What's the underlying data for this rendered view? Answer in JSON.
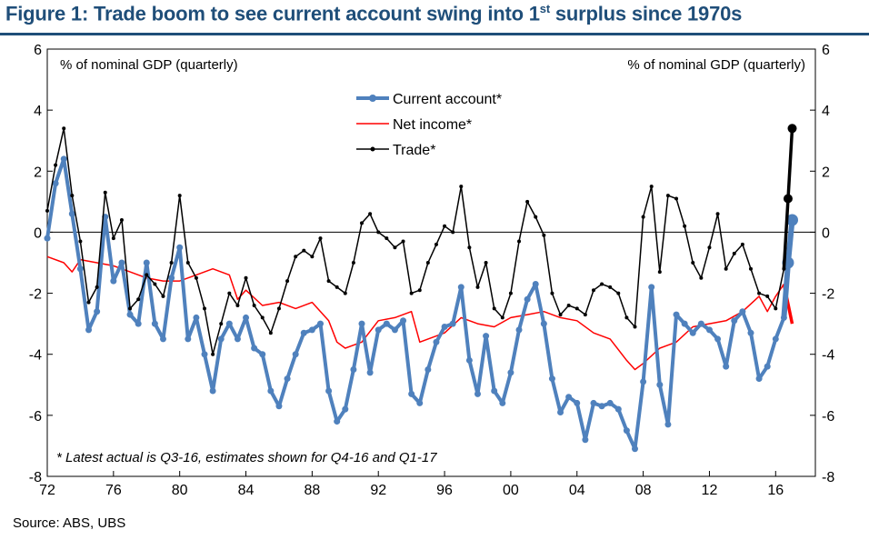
{
  "title": {
    "prefix": "Figure 1: Trade boom to see current account swing into 1",
    "superscript": "st",
    "suffix": " surplus since 1970s"
  },
  "source": "Source: ABS, UBS",
  "colors": {
    "title": "#1f4e79",
    "current_account": "#4f81bd",
    "net_income": "#ff0000",
    "trade": "#000000"
  },
  "chart_data": {
    "type": "line",
    "ylabel_left": "% of nominal GDP (quarterly)",
    "ylabel_right": "% of nominal GDP (quarterly)",
    "ylim": [
      -8,
      6
    ],
    "yticks": [
      "6",
      "4",
      "2",
      "0",
      "-2",
      "-4",
      "-6",
      "-8"
    ],
    "xlim": [
      1972,
      2018.4
    ],
    "xticks": [
      "72",
      "76",
      "80",
      "84",
      "88",
      "92",
      "96",
      "00",
      "04",
      "08",
      "12",
      "16"
    ],
    "legend_position": "top-center",
    "annotation": "* Latest actual is Q3-16, estimates shown for Q4-16 and Q1-17",
    "series": [
      {
        "name": "Current account*",
        "color": "#4f81bd",
        "x": [
          1972.0,
          1972.5,
          1973.0,
          1973.5,
          1974.0,
          1974.5,
          1975.0,
          1975.5,
          1976.0,
          1976.5,
          1977.0,
          1977.5,
          1978.0,
          1978.5,
          1979.0,
          1979.5,
          1980.0,
          1980.5,
          1981.0,
          1981.5,
          1982.0,
          1982.5,
          1983.0,
          1983.5,
          1984.0,
          1984.5,
          1985.0,
          1985.5,
          1986.0,
          1986.5,
          1987.0,
          1987.5,
          1988.0,
          1988.5,
          1989.0,
          1989.5,
          1990.0,
          1990.5,
          1991.0,
          1991.5,
          1992.0,
          1992.5,
          1993.0,
          1993.5,
          1994.0,
          1994.5,
          1995.0,
          1995.5,
          1996.0,
          1996.5,
          1997.0,
          1997.5,
          1998.0,
          1998.5,
          1999.0,
          1999.5,
          2000.0,
          2000.5,
          2001.0,
          2001.5,
          2002.0,
          2002.5,
          2003.0,
          2003.5,
          2004.0,
          2004.5,
          2005.0,
          2005.5,
          2006.0,
          2006.5,
          2007.0,
          2007.5,
          2008.0,
          2008.5,
          2009.0,
          2009.5,
          2010.0,
          2010.5,
          2011.0,
          2011.5,
          2012.0,
          2012.5,
          2013.0,
          2013.5,
          2014.0,
          2014.5,
          2015.0,
          2015.5,
          2016.0,
          2016.5,
          2016.75,
          2017.0
        ],
        "values": [
          -0.2,
          1.6,
          2.4,
          0.6,
          -1.2,
          -3.2,
          -2.6,
          0.5,
          -1.6,
          -1.0,
          -2.7,
          -3.0,
          -1.0,
          -3.0,
          -3.5,
          -1.5,
          -0.5,
          -3.5,
          -2.8,
          -4.0,
          -5.2,
          -3.5,
          -3.0,
          -3.5,
          -2.8,
          -3.8,
          -4.0,
          -5.2,
          -5.7,
          -4.8,
          -4.0,
          -3.3,
          -3.2,
          -3.0,
          -5.2,
          -6.2,
          -5.8,
          -4.5,
          -3.0,
          -4.6,
          -3.2,
          -3.0,
          -3.2,
          -2.9,
          -5.3,
          -5.6,
          -4.5,
          -3.6,
          -3.1,
          -3.0,
          -1.8,
          -4.2,
          -5.3,
          -3.4,
          -5.2,
          -5.6,
          -4.6,
          -3.2,
          -2.2,
          -1.7,
          -3.0,
          -4.8,
          -5.9,
          -5.4,
          -5.6,
          -6.8,
          -5.6,
          -5.7,
          -5.6,
          -5.8,
          -6.5,
          -7.1,
          -4.9,
          -1.8,
          -5.0,
          -6.3,
          -2.7,
          -3.0,
          -3.3,
          -3.0,
          -3.2,
          -3.5,
          -4.4,
          -2.9,
          -2.6,
          -3.3,
          -4.8,
          -4.4,
          -3.5,
          -2.8,
          -1.0,
          0.4
        ]
      },
      {
        "name": "Net income*",
        "color": "#ff0000",
        "x": [
          1972.0,
          1973.0,
          1973.5,
          1974.0,
          1975.0,
          1976.0,
          1977.0,
          1978.0,
          1979.0,
          1980.0,
          1981.0,
          1982.0,
          1983.0,
          1983.5,
          1984.0,
          1985.0,
          1986.0,
          1987.0,
          1988.0,
          1989.0,
          1989.5,
          1990.0,
          1991.0,
          1992.0,
          1993.0,
          1994.0,
          1994.5,
          1995.0,
          1996.0,
          1997.0,
          1998.0,
          1999.0,
          2000.0,
          2001.0,
          2002.0,
          2003.0,
          2004.0,
          2005.0,
          2006.0,
          2007.0,
          2007.5,
          2008.0,
          2009.0,
          2010.0,
          2011.0,
          2012.0,
          2013.0,
          2014.0,
          2015.0,
          2015.5,
          2016.0,
          2016.5,
          2017.0
        ],
        "values": [
          -0.8,
          -1.0,
          -1.3,
          -0.9,
          -1.0,
          -1.1,
          -1.3,
          -1.5,
          -1.6,
          -1.6,
          -1.4,
          -1.2,
          -1.4,
          -2.2,
          -1.9,
          -2.4,
          -2.3,
          -2.5,
          -2.3,
          -2.9,
          -3.6,
          -3.8,
          -3.6,
          -2.9,
          -2.8,
          -2.6,
          -3.6,
          -3.5,
          -3.3,
          -2.8,
          -3.0,
          -3.1,
          -2.8,
          -2.7,
          -2.6,
          -2.8,
          -2.9,
          -3.3,
          -3.5,
          -4.2,
          -4.5,
          -4.3,
          -3.8,
          -3.6,
          -3.1,
          -3.0,
          -2.9,
          -2.6,
          -2.1,
          -2.6,
          -2.1,
          -1.7,
          -3.0
        ]
      },
      {
        "name": "Trade*",
        "color": "#000000",
        "x": [
          1972.0,
          1972.5,
          1973.0,
          1973.5,
          1974.0,
          1974.5,
          1975.0,
          1975.5,
          1976.0,
          1976.5,
          1977.0,
          1977.5,
          1978.0,
          1978.5,
          1979.0,
          1979.5,
          1980.0,
          1980.5,
          1981.0,
          1981.5,
          1982.0,
          1982.5,
          1983.0,
          1983.5,
          1984.0,
          1984.5,
          1985.0,
          1985.5,
          1986.0,
          1986.5,
          1987.0,
          1987.5,
          1988.0,
          1988.5,
          1989.0,
          1989.5,
          1990.0,
          1990.5,
          1991.0,
          1991.5,
          1992.0,
          1992.5,
          1993.0,
          1993.5,
          1994.0,
          1994.5,
          1995.0,
          1995.5,
          1996.0,
          1996.5,
          1997.0,
          1997.5,
          1998.0,
          1998.5,
          1999.0,
          1999.5,
          2000.0,
          2000.5,
          2001.0,
          2001.5,
          2002.0,
          2002.5,
          2003.0,
          2003.5,
          2004.0,
          2004.5,
          2005.0,
          2005.5,
          2006.0,
          2006.5,
          2007.0,
          2007.5,
          2008.0,
          2008.5,
          2009.0,
          2009.5,
          2010.0,
          2010.5,
          2011.0,
          2011.5,
          2012.0,
          2012.5,
          2013.0,
          2013.5,
          2014.0,
          2014.5,
          2015.0,
          2015.5,
          2016.0,
          2016.5,
          2016.75,
          2017.0
        ],
        "values": [
          0.7,
          2.2,
          3.4,
          1.2,
          -0.3,
          -2.3,
          -1.8,
          1.3,
          -0.2,
          0.4,
          -2.5,
          -2.2,
          -1.4,
          -1.7,
          -2.1,
          -1.0,
          1.2,
          -1.0,
          -1.5,
          -2.5,
          -4.0,
          -3.0,
          -2.0,
          -2.4,
          -1.5,
          -2.4,
          -2.8,
          -3.3,
          -2.5,
          -1.6,
          -0.8,
          -0.6,
          -0.8,
          -0.2,
          -1.6,
          -1.8,
          -2.0,
          -1.0,
          0.3,
          0.6,
          0.0,
          -0.2,
          -0.5,
          -0.3,
          -2.0,
          -1.9,
          -1.0,
          -0.4,
          0.2,
          0.0,
          1.5,
          -0.5,
          -1.8,
          -1.0,
          -2.5,
          -2.8,
          -2.0,
          -0.3,
          1.0,
          0.5,
          -0.1,
          -2.0,
          -2.7,
          -2.4,
          -2.5,
          -2.7,
          -1.9,
          -1.7,
          -1.8,
          -2.0,
          -2.8,
          -3.1,
          0.5,
          1.5,
          -1.3,
          1.2,
          1.1,
          0.2,
          -1.0,
          -1.5,
          -0.5,
          0.6,
          -1.2,
          -0.7,
          -0.4,
          -1.2,
          -2.0,
          -2.1,
          -2.5,
          -1.2,
          1.1,
          3.4
        ]
      }
    ]
  }
}
